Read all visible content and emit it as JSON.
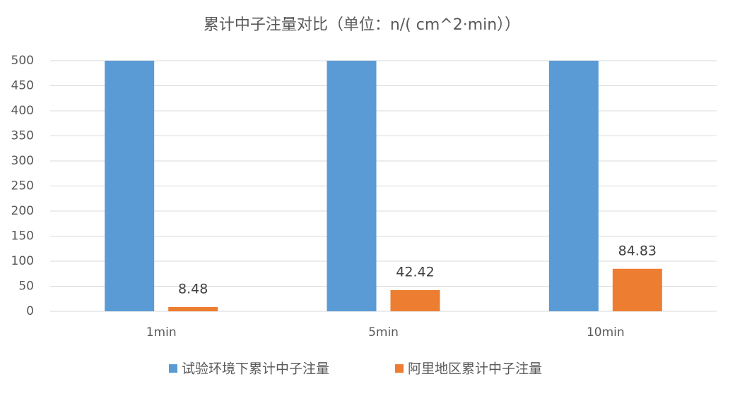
{
  "chart_data": {
    "type": "bar",
    "title": "累计中子注量对比（单位：n/( cm^2·min））",
    "categories": [
      "1min",
      "5min",
      "10min"
    ],
    "series": [
      {
        "name": "试验环境下累计中子注量",
        "color": "#5b9bd5",
        "values": [
          500,
          500,
          500
        ]
      },
      {
        "name": "阿里地区累计中子注量",
        "color": "#ed7d31",
        "values": [
          8.48,
          42.42,
          84.83
        ],
        "data_labels": true
      }
    ],
    "ylim": [
      0,
      500
    ],
    "yticks": [
      0,
      50,
      100,
      150,
      200,
      250,
      300,
      350,
      400,
      450,
      500
    ],
    "grid": true,
    "legend": "bottom"
  }
}
